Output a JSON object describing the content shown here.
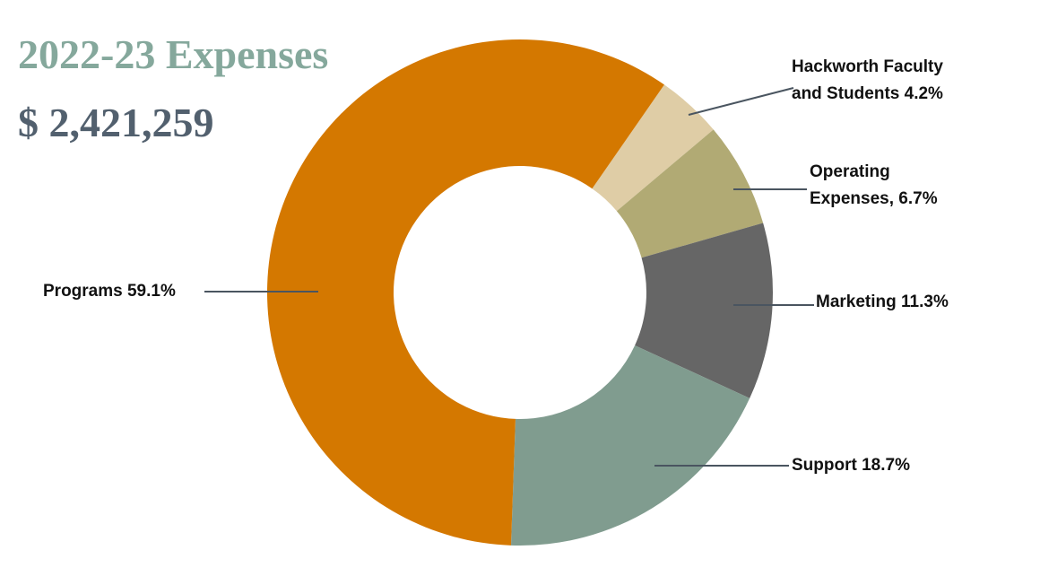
{
  "chart_data": {
    "type": "donut",
    "title": "2022-23 Expenses",
    "subtitle": "$ 2,421,259",
    "categories": [
      "Hackworth Faculty and Students",
      "Operating Expenses,",
      "Marketing",
      "Support",
      "Programs"
    ],
    "values": [
      4.2,
      6.7,
      11.3,
      18.7,
      59.1
    ],
    "value_labels": [
      "4.2%",
      "6.7%",
      "11.3%",
      "18.7%",
      "59.1%"
    ],
    "colors": [
      "#dfcda6",
      "#b1aa74",
      "#666666",
      "#809c8f",
      "#d47800"
    ]
  }
}
